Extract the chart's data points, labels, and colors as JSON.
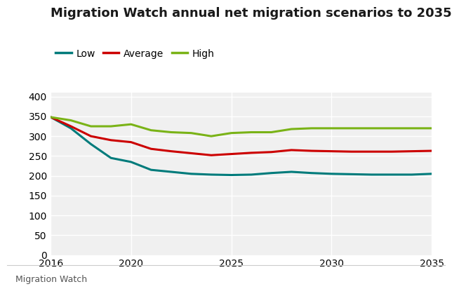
{
  "title": "Migration Watch annual net migration scenarios to 2035",
  "background_color": "#ffffff",
  "plot_bg_color": "#f0f0f0",
  "grid_color": "#ffffff",
  "footer_text": "Migration Watch",
  "series": [
    {
      "label": "Low",
      "color": "#007b7b",
      "x": [
        2016,
        2017,
        2018,
        2019,
        2020,
        2021,
        2022,
        2023,
        2024,
        2025,
        2026,
        2027,
        2028,
        2029,
        2030,
        2031,
        2032,
        2033,
        2034,
        2035
      ],
      "y": [
        348,
        320,
        280,
        245,
        235,
        215,
        210,
        205,
        203,
        202,
        203,
        207,
        210,
        207,
        205,
        204,
        203,
        203,
        203,
        205
      ]
    },
    {
      "label": "Average",
      "color": "#cc0000",
      "x": [
        2016,
        2017,
        2018,
        2019,
        2020,
        2021,
        2022,
        2023,
        2024,
        2025,
        2026,
        2027,
        2028,
        2029,
        2030,
        2031,
        2032,
        2033,
        2034,
        2035
      ],
      "y": [
        348,
        325,
        300,
        290,
        285,
        268,
        262,
        257,
        252,
        255,
        258,
        260,
        265,
        263,
        262,
        261,
        261,
        261,
        262,
        263
      ]
    },
    {
      "label": "High",
      "color": "#7ab317",
      "x": [
        2016,
        2017,
        2018,
        2019,
        2020,
        2021,
        2022,
        2023,
        2024,
        2025,
        2026,
        2027,
        2028,
        2029,
        2030,
        2031,
        2032,
        2033,
        2034,
        2035
      ],
      "y": [
        348,
        340,
        325,
        325,
        330,
        315,
        310,
        308,
        300,
        308,
        310,
        310,
        318,
        320,
        320,
        320,
        320,
        320,
        320,
        320
      ]
    }
  ],
  "xlim": [
    2016,
    2035
  ],
  "ylim": [
    0,
    410
  ],
  "yticks": [
    0,
    50,
    100,
    150,
    200,
    250,
    300,
    350,
    400
  ],
  "xticks": [
    2016,
    2020,
    2025,
    2030,
    2035
  ],
  "line_width": 2.2,
  "title_fontsize": 13,
  "tick_fontsize": 10,
  "legend_fontsize": 10,
  "footer_fontsize": 9,
  "bbc_bg": "#808080",
  "footer_line_color": "#cccccc",
  "footer_text_color": "#555555"
}
